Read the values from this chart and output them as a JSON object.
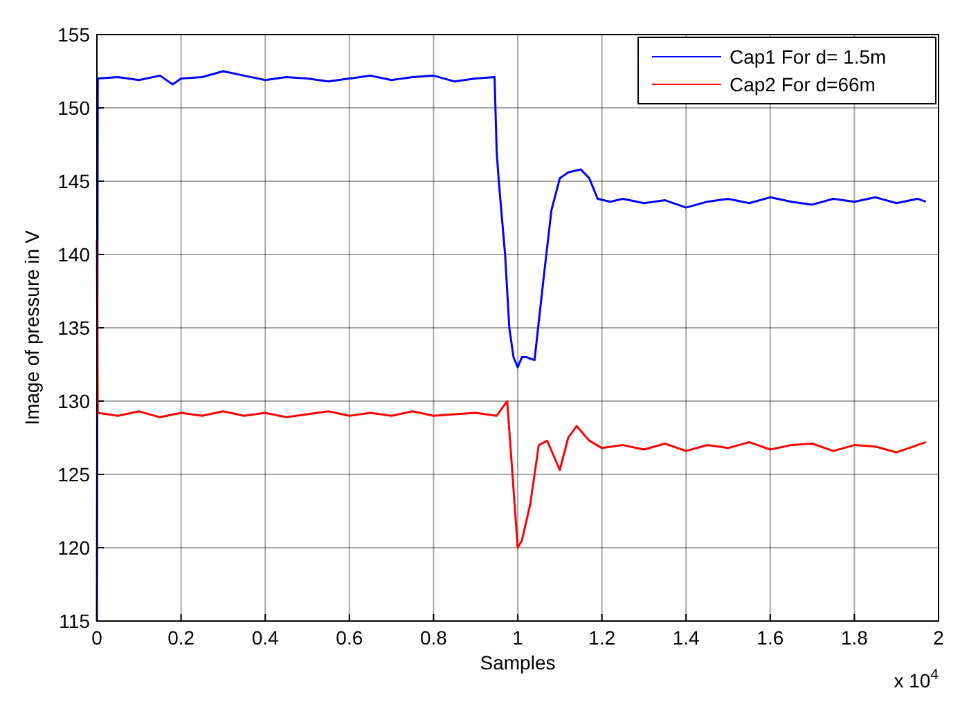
{
  "chart_data": {
    "type": "line",
    "xlabel": "Samples",
    "ylabel": "Image of pressure in V",
    "annotations": [
      "x 10$^{4}$"
    ],
    "xlim": [
      0,
      2
    ],
    "xticks": [
      0,
      0.2,
      0.4,
      0.6,
      0.8,
      1,
      1.2,
      1.4,
      1.6,
      1.8,
      2
    ],
    "ylim": [
      115,
      155
    ],
    "yticks": [
      115,
      120,
      125,
      130,
      135,
      140,
      145,
      150,
      155
    ],
    "grid": true,
    "legend": "top right",
    "line_style": "solid",
    "marker": "none",
    "series": [
      {
        "name": "Cap1 For d= 1.5m",
        "color": "#0000ff",
        "x": [
          0,
          0.002,
          0.05,
          0.1,
          0.15,
          0.18,
          0.2,
          0.25,
          0.3,
          0.35,
          0.4,
          0.45,
          0.5,
          0.55,
          0.6,
          0.65,
          0.7,
          0.75,
          0.8,
          0.85,
          0.9,
          0.945,
          0.95,
          0.955,
          0.97,
          0.98,
          0.99,
          1.0,
          1.01,
          1.02,
          1.04,
          1.06,
          1.08,
          1.1,
          1.12,
          1.15,
          1.17,
          1.19,
          1.22,
          1.25,
          1.3,
          1.35,
          1.4,
          1.45,
          1.5,
          1.55,
          1.6,
          1.65,
          1.7,
          1.75,
          1.8,
          1.85,
          1.9,
          1.95,
          1.97
        ],
        "values": [
          115,
          152,
          152.1,
          151.9,
          152.2,
          151.6,
          152,
          152.1,
          152.5,
          152.2,
          151.9,
          152.1,
          152,
          151.8,
          152,
          152.2,
          151.9,
          152.1,
          152.2,
          151.8,
          152,
          152.1,
          147,
          145,
          140,
          135,
          133,
          132.3,
          133,
          133,
          132.8,
          138,
          143,
          145.2,
          145.6,
          145.8,
          145.2,
          143.8,
          143.6,
          143.8,
          143.5,
          143.7,
          143.2,
          143.6,
          143.8,
          143.5,
          143.9,
          143.6,
          143.4,
          143.8,
          143.6,
          143.9,
          143.5,
          143.8,
          143.6
        ]
      },
      {
        "name": "Cap2 For d=66m",
        "color": "#ff0000",
        "x": [
          0,
          0.002,
          0.05,
          0.1,
          0.15,
          0.2,
          0.25,
          0.3,
          0.35,
          0.4,
          0.45,
          0.5,
          0.55,
          0.6,
          0.65,
          0.7,
          0.75,
          0.8,
          0.85,
          0.9,
          0.95,
          0.975,
          0.99,
          1.0,
          1.01,
          1.03,
          1.05,
          1.07,
          1.1,
          1.12,
          1.14,
          1.17,
          1.2,
          1.25,
          1.3,
          1.35,
          1.4,
          1.45,
          1.5,
          1.55,
          1.6,
          1.65,
          1.7,
          1.75,
          1.8,
          1.85,
          1.9,
          1.95,
          1.97
        ],
        "values": [
          141,
          129.2,
          129,
          129.3,
          128.9,
          129.2,
          129,
          129.3,
          129,
          129.2,
          128.9,
          129.1,
          129.3,
          129,
          129.2,
          129,
          129.3,
          129,
          129.1,
          129.2,
          129,
          130,
          124,
          120,
          120.5,
          123,
          127,
          127.3,
          125.3,
          127.5,
          128.3,
          127.3,
          126.8,
          127,
          126.7,
          127.1,
          126.6,
          127,
          126.8,
          127.2,
          126.7,
          127,
          127.1,
          126.6,
          127,
          126.9,
          126.5,
          127,
          127.2
        ]
      }
    ]
  }
}
